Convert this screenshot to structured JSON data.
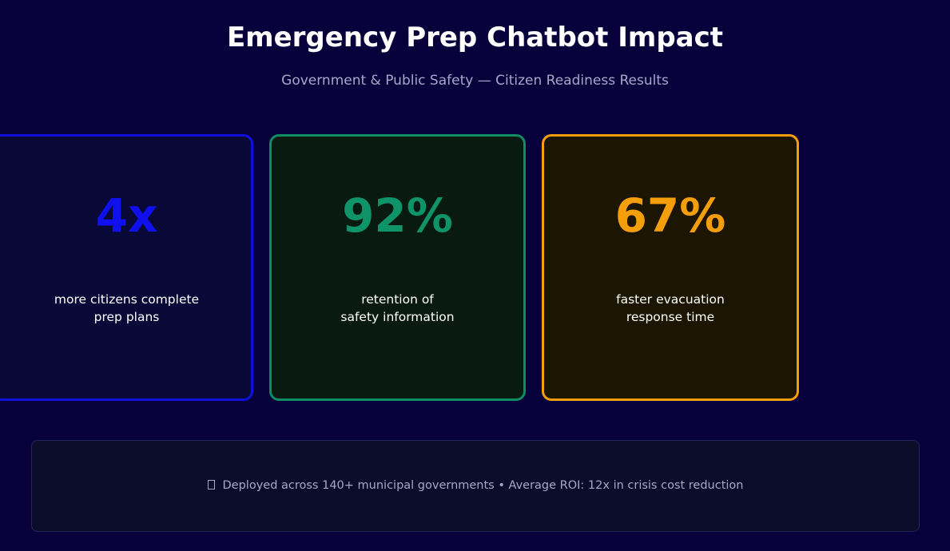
{
  "header": {
    "title": "Emergency Prep Chatbot Impact",
    "subtitle": "Government & Public Safety — Citizen Readiness Results"
  },
  "cards": [
    {
      "value": "4x",
      "desc_lines": [
        "more citizens complete",
        "prep plans"
      ],
      "color": "#1010ee"
    },
    {
      "value": "92%",
      "desc_lines": [
        "retention of",
        "safety information"
      ],
      "color": "#0e9468"
    },
    {
      "value": "67%",
      "desc_lines": [
        "faster evacuation",
        "response time"
      ],
      "color": "#f59e0b"
    }
  ],
  "footer": {
    "icon": "missing-glyph-icon",
    "text": "Deployed across 140+ municipal governments  •  Average ROI: 12x in crisis cost reduction"
  },
  "colors": {
    "background": "#08003b",
    "text_muted": "#a5a8c8"
  }
}
